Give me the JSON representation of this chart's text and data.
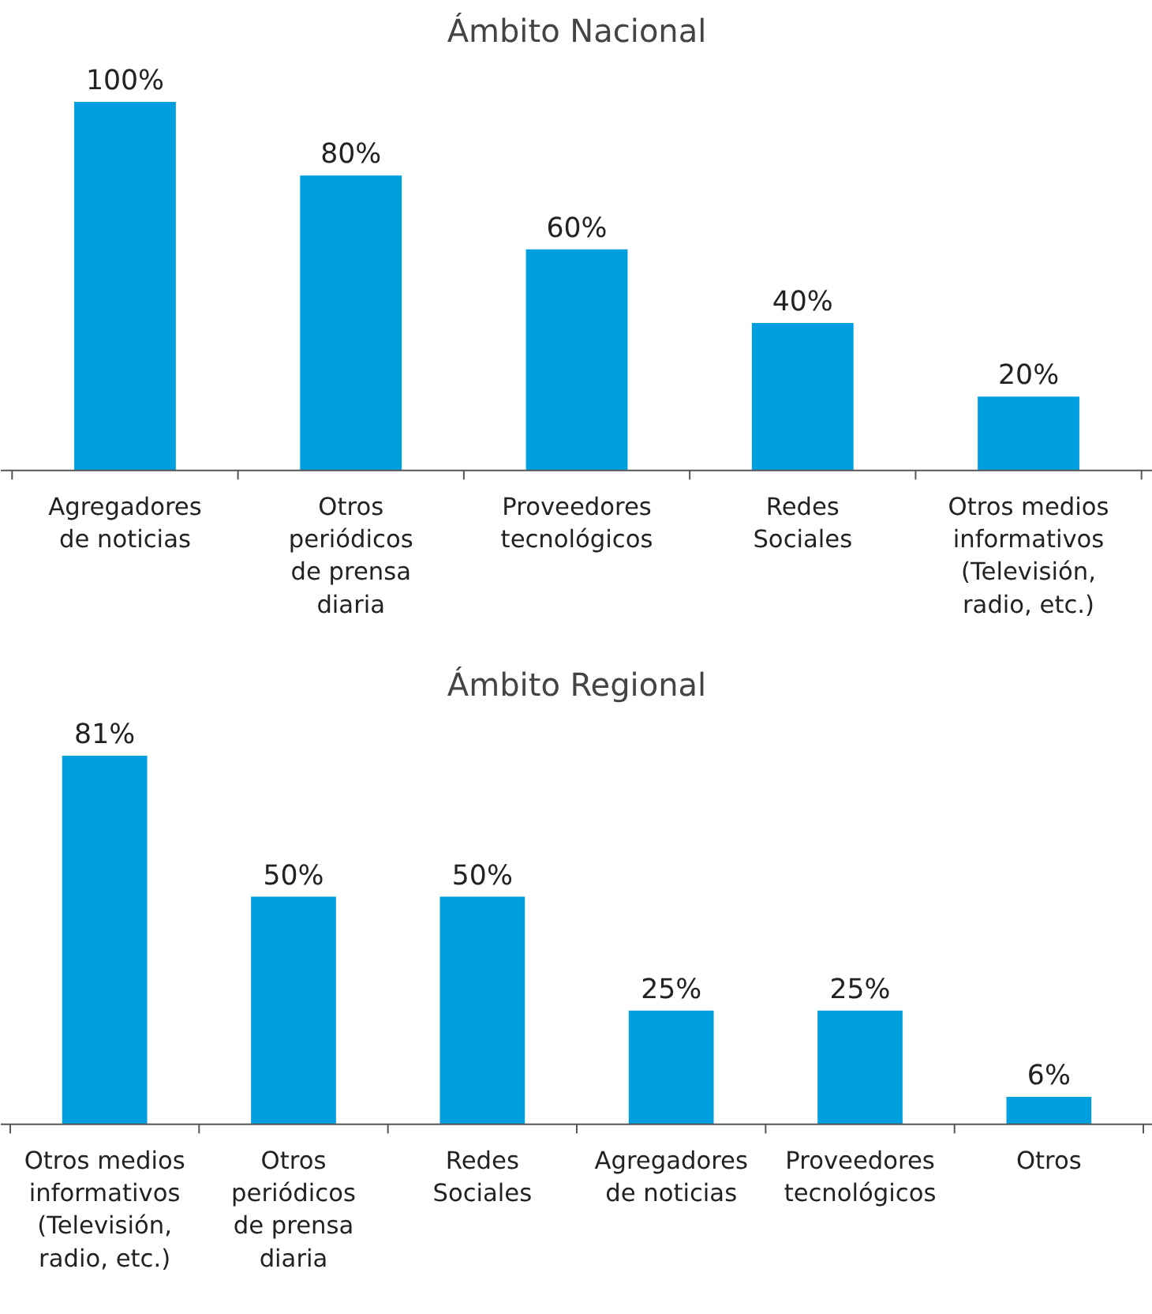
{
  "chart_data": [
    {
      "type": "bar",
      "title": "Ámbito Nacional",
      "categories": [
        "Agregadores de noticias",
        "Otros periódicos de prensa diaria",
        "Proveedores tecnológicos",
        "Redes Sociales",
        "Otros medios informativos (Televisión, radio, etc.)"
      ],
      "values": [
        100,
        80,
        60,
        40,
        20
      ],
      "value_labels": [
        "100%",
        "80%",
        "60%",
        "40%",
        "20%"
      ],
      "color": "#009fdf"
    },
    {
      "type": "bar",
      "title": "Ámbito Regional",
      "categories": [
        "Otros medios informativos (Televisión, radio, etc.)",
        "Otros periódicos de prensa diaria",
        "Redes Sociales",
        "Agregadores de noticias",
        "Proveedores tecnológicos",
        "Otros"
      ],
      "values": [
        81,
        50,
        50,
        25,
        25,
        6
      ],
      "value_labels": [
        "81%",
        "50%",
        "50%",
        "25%",
        "25%",
        "6%"
      ],
      "color": "#009fdf"
    }
  ]
}
